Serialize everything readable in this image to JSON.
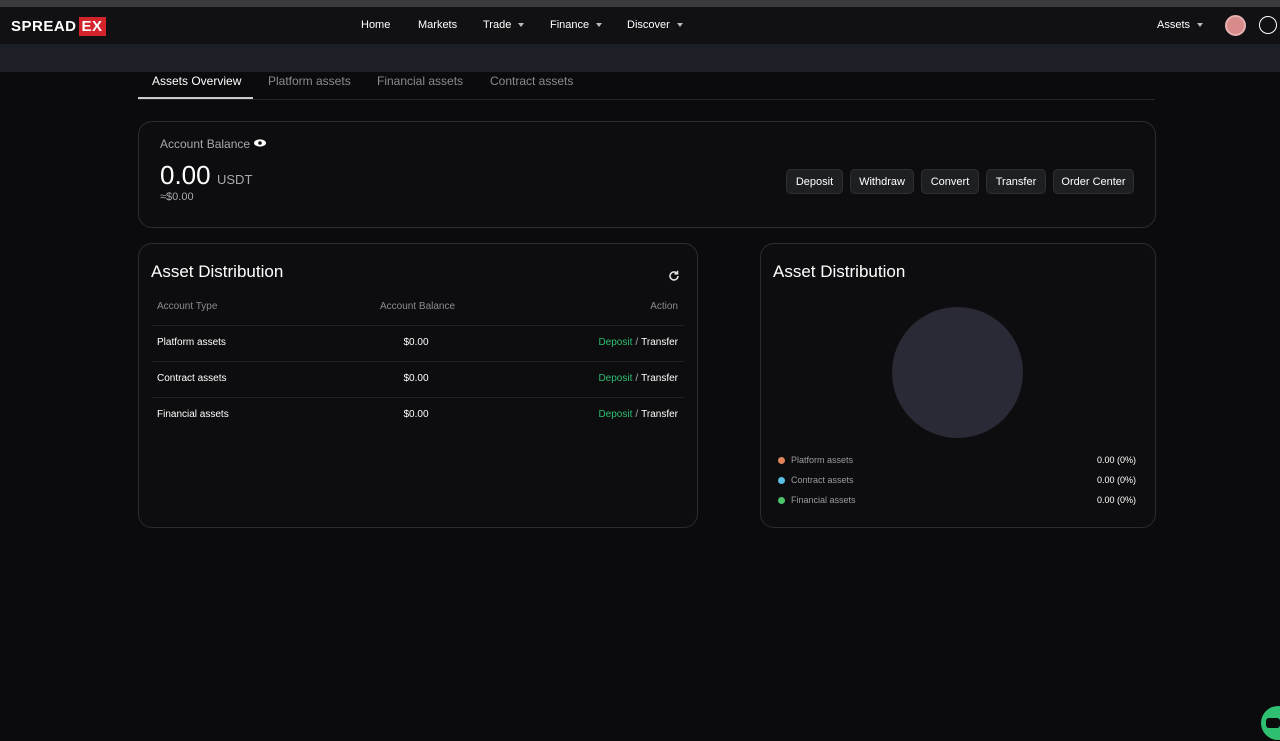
{
  "nav": {
    "logo": {
      "main": "SPREAD",
      "badge": "EX"
    },
    "items": [
      "Home",
      "Markets",
      "Trade",
      "Finance",
      "Discover"
    ],
    "assets": "Assets"
  },
  "tabs": [
    "Assets Overview",
    "Platform assets",
    "Financial assets",
    "Contract assets"
  ],
  "balance": {
    "label": "Account Balance",
    "amount": "0.00",
    "currency": "USDT",
    "approx": "≈$0.00",
    "buttons": [
      "Deposit",
      "Withdraw",
      "Convert",
      "Transfer",
      "Order Center"
    ]
  },
  "table": {
    "title": "Asset Distribution",
    "headers": [
      "Account Type",
      "Account Balance",
      "Action"
    ],
    "rows": [
      [
        "Platform assets",
        "$0.00"
      ],
      [
        "Contract assets",
        "$0.00"
      ],
      [
        "Financial assets",
        "$0.00"
      ]
    ],
    "actions": {
      "deposit": "Deposit",
      "separator": "/",
      "transfer": "Transfer"
    }
  },
  "distribution": {
    "title": "Asset Distribution",
    "legend": [
      {
        "label": "Platform assets",
        "value": "0.00 (0%)",
        "color": "#e0845c"
      },
      {
        "label": "Contract assets",
        "value": "0.00 (0%)",
        "color": "#5bbfe3"
      },
      {
        "label": "Financial assets",
        "value": "0.00 (0%)",
        "color": "#4cc46a"
      }
    ]
  }
}
